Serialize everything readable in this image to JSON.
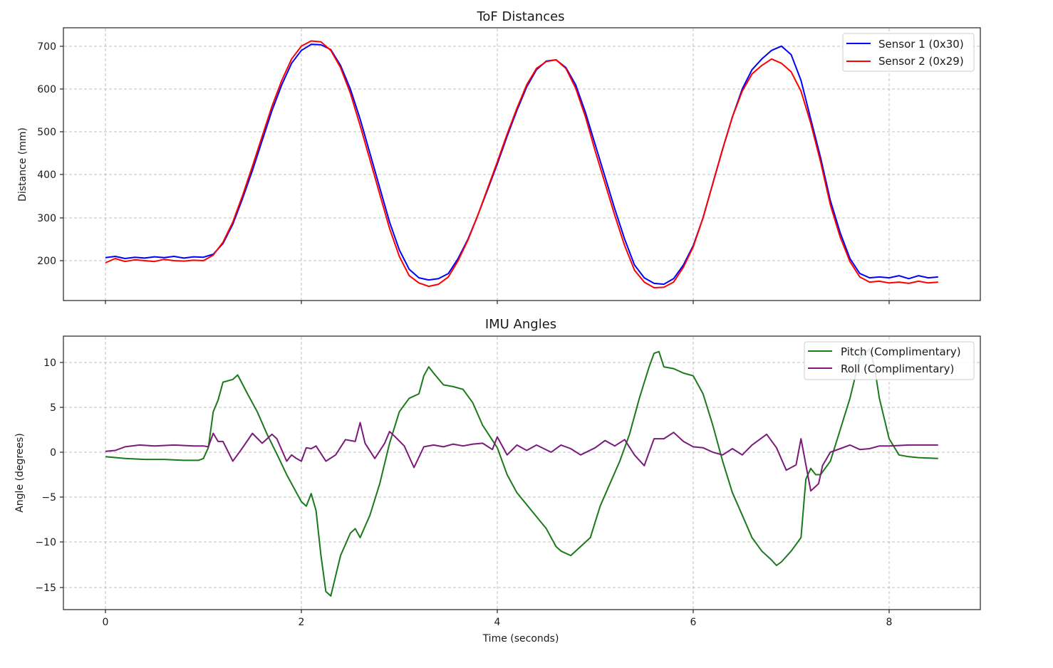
{
  "chart_data": [
    {
      "type": "line",
      "title": "ToF Distances",
      "xlabel": "",
      "ylabel": "Distance (mm)",
      "xlim": [
        -0.42,
        8.94
      ],
      "ylim": [
        105,
        735
      ],
      "xticks": [
        0,
        2,
        4,
        6,
        8
      ],
      "xtick_labels_visible": false,
      "yticks": [
        200,
        300,
        400,
        500,
        600,
        700
      ],
      "grid": true,
      "legend_position": "upper right",
      "series": [
        {
          "name": "Sensor 1 (0x30)",
          "color": "#0000ff",
          "x": [
            0,
            0.1,
            0.2,
            0.3,
            0.4,
            0.5,
            0.6,
            0.7,
            0.8,
            0.9,
            1.0,
            1.1,
            1.2,
            1.3,
            1.4,
            1.5,
            1.6,
            1.7,
            1.8,
            1.9,
            2.0,
            2.1,
            2.2,
            2.3,
            2.4,
            2.5,
            2.6,
            2.7,
            2.8,
            2.9,
            3.0,
            3.1,
            3.2,
            3.3,
            3.4,
            3.5,
            3.6,
            3.7,
            3.8,
            3.9,
            4.0,
            4.1,
            4.2,
            4.3,
            4.4,
            4.5,
            4.6,
            4.7,
            4.8,
            4.9,
            5.0,
            5.1,
            5.2,
            5.3,
            5.4,
            5.5,
            5.6,
            5.7,
            5.8,
            5.9,
            6.0,
            6.1,
            6.2,
            6.3,
            6.4,
            6.5,
            6.6,
            6.7,
            6.8,
            6.9,
            7.0,
            7.1,
            7.2,
            7.3,
            7.4,
            7.5,
            7.6,
            7.7,
            7.8,
            7.9,
            8.0,
            8.1,
            8.2,
            8.3,
            8.4,
            8.5
          ],
          "values": [
            207,
            210,
            205,
            208,
            206,
            209,
            207,
            210,
            206,
            209,
            208,
            215,
            240,
            285,
            345,
            410,
            480,
            550,
            610,
            660,
            690,
            704,
            703,
            692,
            655,
            600,
            530,
            450,
            370,
            290,
            225,
            180,
            160,
            155,
            158,
            170,
            205,
            250,
            305,
            365,
            425,
            490,
            550,
            605,
            645,
            665,
            668,
            650,
            610,
            545,
            470,
            395,
            320,
            250,
            190,
            160,
            147,
            145,
            158,
            190,
            235,
            300,
            380,
            460,
            535,
            600,
            645,
            670,
            690,
            700,
            680,
            620,
            530,
            440,
            340,
            265,
            205,
            170,
            160,
            162,
            160,
            165,
            158,
            165,
            160,
            162
          ],
          "value_range_observed": [
            145,
            704
          ]
        },
        {
          "name": "Sensor 2 (0x29)",
          "color": "#ff0000",
          "x": [
            0,
            0.1,
            0.2,
            0.3,
            0.4,
            0.5,
            0.6,
            0.7,
            0.8,
            0.9,
            1.0,
            1.1,
            1.2,
            1.3,
            1.4,
            1.5,
            1.6,
            1.7,
            1.8,
            1.9,
            2.0,
            2.1,
            2.2,
            2.3,
            2.4,
            2.5,
            2.6,
            2.7,
            2.8,
            2.9,
            3.0,
            3.1,
            3.2,
            3.3,
            3.4,
            3.5,
            3.6,
            3.7,
            3.8,
            3.9,
            4.0,
            4.1,
            4.2,
            4.3,
            4.4,
            4.5,
            4.6,
            4.7,
            4.8,
            4.9,
            5.0,
            5.1,
            5.2,
            5.3,
            5.4,
            5.5,
            5.6,
            5.7,
            5.8,
            5.9,
            6.0,
            6.1,
            6.2,
            6.3,
            6.4,
            6.5,
            6.6,
            6.7,
            6.8,
            6.9,
            7.0,
            7.1,
            7.2,
            7.3,
            7.4,
            7.5,
            7.6,
            7.7,
            7.8,
            7.9,
            8.0,
            8.1,
            8.2,
            8.3,
            8.4,
            8.5
          ],
          "values": [
            195,
            205,
            198,
            202,
            200,
            198,
            203,
            200,
            199,
            201,
            200,
            213,
            243,
            290,
            352,
            420,
            490,
            560,
            620,
            670,
            700,
            712,
            710,
            690,
            650,
            590,
            515,
            435,
            355,
            275,
            210,
            165,
            148,
            140,
            145,
            162,
            200,
            248,
            305,
            368,
            430,
            495,
            555,
            610,
            648,
            664,
            668,
            648,
            602,
            535,
            455,
            380,
            305,
            235,
            178,
            150,
            137,
            138,
            150,
            185,
            232,
            300,
            380,
            460,
            535,
            595,
            635,
            655,
            670,
            660,
            640,
            595,
            520,
            430,
            330,
            255,
            198,
            162,
            150,
            152,
            148,
            150,
            147,
            152,
            148,
            150
          ],
          "value_range_observed": [
            137,
            712
          ]
        }
      ]
    },
    {
      "type": "line",
      "title": "IMU Angles",
      "xlabel": "Time (seconds)",
      "ylabel": "Angle (degrees)",
      "xlim": [
        -0.42,
        8.94
      ],
      "ylim": [
        -17.5,
        12.9
      ],
      "xticks": [
        0,
        2,
        4,
        6,
        8
      ],
      "yticks": [
        -15,
        -10,
        -5,
        0,
        5,
        10
      ],
      "ytick_labels": [
        "−15",
        "−10",
        "−5",
        "0",
        "5",
        "10"
      ],
      "grid": true,
      "legend_position": "upper right",
      "series": [
        {
          "name": "Pitch (Complimentary)",
          "color": "#1a7a1a",
          "x": [
            0,
            0.2,
            0.4,
            0.6,
            0.8,
            0.95,
            1.0,
            1.05,
            1.1,
            1.15,
            1.2,
            1.3,
            1.35,
            1.45,
            1.55,
            1.65,
            1.75,
            1.85,
            1.95,
            2.0,
            2.05,
            2.1,
            2.15,
            2.2,
            2.25,
            2.3,
            2.4,
            2.5,
            2.55,
            2.6,
            2.7,
            2.8,
            2.9,
            3.0,
            3.1,
            3.2,
            3.25,
            3.3,
            3.35,
            3.45,
            3.55,
            3.65,
            3.75,
            3.85,
            4.0,
            4.1,
            4.2,
            4.35,
            4.5,
            4.6,
            4.65,
            4.75,
            4.85,
            4.95,
            5.05,
            5.15,
            5.25,
            5.35,
            5.45,
            5.55,
            5.6,
            5.65,
            5.7,
            5.8,
            5.9,
            6.0,
            6.1,
            6.2,
            6.3,
            6.4,
            6.5,
            6.6,
            6.7,
            6.8,
            6.85,
            6.9,
            7.0,
            7.1,
            7.15,
            7.2,
            7.25,
            7.3,
            7.4,
            7.5,
            7.6,
            7.7,
            7.8,
            7.85,
            7.9,
            8.0,
            8.1,
            8.2,
            8.3,
            8.5
          ],
          "values": [
            -0.5,
            -0.7,
            -0.8,
            -0.8,
            -0.9,
            -0.9,
            -0.7,
            0.5,
            4.5,
            5.8,
            7.8,
            8.1,
            8.6,
            6.5,
            4.5,
            2.0,
            -0.2,
            -2.5,
            -4.5,
            -5.5,
            -6.0,
            -4.6,
            -6.5,
            -11.5,
            -15.5,
            -16.0,
            -11.5,
            -9.0,
            -8.5,
            -9.5,
            -7.0,
            -3.5,
            1.0,
            4.5,
            6.0,
            6.5,
            8.5,
            9.5,
            8.8,
            7.5,
            7.3,
            7.0,
            5.5,
            3.0,
            0.5,
            -2.5,
            -4.5,
            -6.5,
            -8.5,
            -10.5,
            -11.0,
            -11.5,
            -10.5,
            -9.5,
            -6.0,
            -3.5,
            -1.0,
            2.0,
            6.0,
            9.5,
            11.0,
            11.2,
            9.5,
            9.3,
            8.8,
            8.5,
            6.5,
            3.0,
            -1.0,
            -4.5,
            -7.0,
            -9.5,
            -11.0,
            -12.0,
            -12.6,
            -12.2,
            -11.0,
            -9.5,
            -3.0,
            -1.8,
            -2.5,
            -2.5,
            -1.0,
            2.5,
            6.0,
            10.5,
            11.5,
            9.5,
            6.0,
            1.5,
            -0.3,
            -0.5,
            -0.6,
            -0.7
          ],
          "value_range_observed": [
            -16.0,
            11.5
          ]
        },
        {
          "name": "Roll (Complimentary)",
          "color": "#7b1a7b",
          "x": [
            0,
            0.1,
            0.2,
            0.35,
            0.5,
            0.7,
            0.9,
            1.0,
            1.05,
            1.1,
            1.15,
            1.2,
            1.3,
            1.4,
            1.5,
            1.6,
            1.7,
            1.75,
            1.85,
            1.9,
            1.95,
            2.0,
            2.05,
            2.1,
            2.15,
            2.25,
            2.35,
            2.45,
            2.55,
            2.6,
            2.65,
            2.75,
            2.85,
            2.9,
            2.95,
            3.05,
            3.15,
            3.25,
            3.35,
            3.45,
            3.55,
            3.65,
            3.75,
            3.85,
            3.95,
            4.0,
            4.1,
            4.2,
            4.3,
            4.4,
            4.55,
            4.65,
            4.75,
            4.85,
            5.0,
            5.1,
            5.2,
            5.3,
            5.4,
            5.5,
            5.6,
            5.7,
            5.8,
            5.9,
            6.0,
            6.1,
            6.2,
            6.3,
            6.4,
            6.5,
            6.6,
            6.75,
            6.85,
            6.95,
            7.05,
            7.1,
            7.2,
            7.28,
            7.32,
            7.4,
            7.5,
            7.6,
            7.7,
            7.8,
            7.9,
            8.0,
            8.2,
            8.5
          ],
          "values": [
            0.1,
            0.2,
            0.6,
            0.8,
            0.7,
            0.8,
            0.7,
            0.7,
            0.6,
            2.1,
            1.2,
            1.2,
            -1.0,
            0.5,
            2.1,
            1.0,
            2.0,
            1.5,
            -1.0,
            -0.3,
            -0.7,
            -1.0,
            0.5,
            0.4,
            0.7,
            -1.0,
            -0.3,
            1.4,
            1.2,
            3.3,
            1.0,
            -0.7,
            1.0,
            2.3,
            1.8,
            0.7,
            -1.7,
            0.6,
            0.8,
            0.6,
            0.9,
            0.7,
            0.9,
            1.0,
            0.3,
            1.7,
            -0.3,
            0.8,
            0.2,
            0.8,
            0.0,
            0.8,
            0.4,
            -0.3,
            0.5,
            1.3,
            0.7,
            1.4,
            -0.3,
            -1.5,
            1.5,
            1.5,
            2.2,
            1.2,
            0.6,
            0.5,
            0.0,
            -0.3,
            0.4,
            -0.3,
            0.8,
            2.0,
            0.5,
            -2.0,
            -1.4,
            1.5,
            -4.3,
            -3.5,
            -1.5,
            0.0,
            0.4,
            0.8,
            0.3,
            0.4,
            0.7,
            0.7,
            0.8,
            0.8
          ],
          "value_range_observed": [
            -4.3,
            3.3
          ]
        }
      ]
    }
  ],
  "top_chart": {
    "title": "ToF Distances",
    "ylabel": "Distance (mm)",
    "ytick_labels": [
      "700",
      "600",
      "500",
      "400",
      "300",
      "200"
    ],
    "legend": [
      {
        "label": "Sensor 1 (0x30)",
        "color": "#0000ff"
      },
      {
        "label": "Sensor 2 (0x29)",
        "color": "#ff0000"
      }
    ]
  },
  "bottom_chart": {
    "title": "IMU Angles",
    "ylabel": "Angle (degrees)",
    "xlabel": "Time (seconds)",
    "ytick_labels": [
      "10",
      "5",
      "0",
      "−5",
      "−10",
      "−15"
    ],
    "xtick_labels": [
      "0",
      "2",
      "4",
      "6",
      "8"
    ],
    "legend": [
      {
        "label": "Pitch (Complimentary)",
        "color": "#1a7a1a"
      },
      {
        "label": "Roll (Complimentary)",
        "color": "#7b1a7b"
      }
    ]
  }
}
